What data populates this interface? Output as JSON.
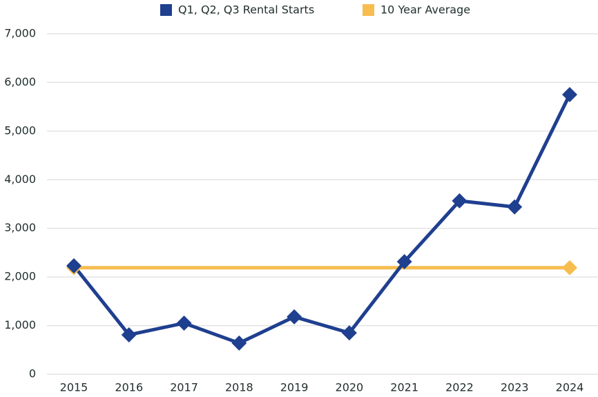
{
  "chart_data": {
    "type": "line",
    "categories": [
      "2015",
      "2016",
      "2017",
      "2018",
      "2019",
      "2020",
      "2021",
      "2022",
      "2023",
      "2024"
    ],
    "series": [
      {
        "name": "Q1, Q2, Q3 Rental Starts",
        "color": "#1f3f8f",
        "markers": "all",
        "values": [
          2230,
          810,
          1050,
          640,
          1180,
          850,
          2315,
          3565,
          3440,
          5750
        ]
      },
      {
        "name": "10 Year Average",
        "color": "#f7bd4f",
        "markers": "ends",
        "values": [
          2190,
          2190,
          2190,
          2190,
          2190,
          2190,
          2190,
          2190,
          2190,
          2190
        ]
      }
    ],
    "ylim": [
      0,
      7000
    ],
    "yticks": [
      0,
      {
        "value": 1000,
        "label": "1,000"
      },
      {
        "value": 2000,
        "label": "2,000"
      },
      {
        "value": 3000,
        "label": "3,000"
      },
      {
        "value": 4000,
        "label": "4,000"
      },
      {
        "value": 5000,
        "label": "5,000"
      },
      {
        "value": 6000,
        "label": "6,000"
      },
      {
        "value": 7000,
        "label": "7,000"
      }
    ],
    "grid": true,
    "legend": "top"
  }
}
